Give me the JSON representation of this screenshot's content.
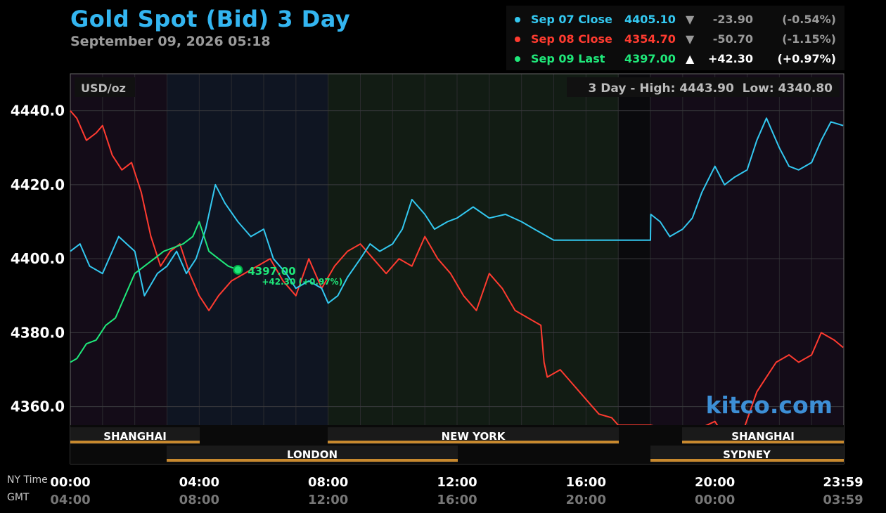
{
  "header": {
    "title": "Gold Spot (Bid) 3 Day",
    "subtitle": "September 09, 2026 05:18"
  },
  "legend": [
    {
      "name": "Sep 07 Close",
      "value": "4405.10",
      "arrow": "▼",
      "change": "-23.90",
      "percent": "(-0.54%)",
      "color": "#33c8f0",
      "change_color": "#9a9a9a"
    },
    {
      "name": "Sep 08 Close",
      "value": "4354.70",
      "arrow": "▼",
      "change": "-50.70",
      "percent": "(-1.15%)",
      "color": "#ff3b30",
      "change_color": "#9a9a9a"
    },
    {
      "name": "Sep 09 Last",
      "value": "4397.00",
      "arrow": "▲",
      "change": "+42.30",
      "percent": "(+0.97%)",
      "color": "#1fe87a",
      "change_color": "#ffffff"
    }
  ],
  "panel": {
    "unit": "USD/oz",
    "high_low": "3 Day - High: 4443.90  Low: 4340.80"
  },
  "marker": {
    "value": "4397.00",
    "change": "+42.30 (+0.97%)"
  },
  "watermark": "kitco.com",
  "sessions": {
    "shanghai_1": "SHANGHAI",
    "london": "LONDON",
    "new_york": "NEW YORK",
    "shanghai_2": "SHANGHAI",
    "sydney": "SYDNEY"
  },
  "axis": {
    "ny_label": "NY Time",
    "gmt_label": "GMT",
    "ny_ticks": [
      "00:00",
      "04:00",
      "08:00",
      "12:00",
      "16:00",
      "20:00",
      "23:59"
    ],
    "gmt_ticks": [
      "04:00",
      "08:00",
      "12:00",
      "16:00",
      "20:00",
      "00:00",
      "03:59"
    ]
  },
  "chart_data": {
    "type": "line",
    "ylim": [
      4355,
      4450
    ],
    "xlim": [
      0,
      24
    ],
    "y_ticks": [
      "4440.0",
      "4420.0",
      "4400.0",
      "4380.0",
      "4360.0"
    ],
    "y_tick_values": [
      4440,
      4420,
      4400,
      4380,
      4360
    ],
    "series": [
      {
        "name": "Sep 07 Close",
        "color": "#33c8f0",
        "x": [
          0,
          0.3,
          0.6,
          1.0,
          1.5,
          2.0,
          2.3,
          2.7,
          3.0,
          3.3,
          3.6,
          3.9,
          4.2,
          4.5,
          4.8,
          5.2,
          5.6,
          6.0,
          6.3,
          6.7,
          7.0,
          7.4,
          7.8,
          8.0,
          8.3,
          8.6,
          9.0,
          9.3,
          9.6,
          10.0,
          10.3,
          10.6,
          11.0,
          11.3,
          11.7,
          12.0,
          12.5,
          13.0,
          13.5,
          14.0,
          14.4,
          15,
          16,
          17,
          18,
          18.01,
          18.3,
          18.6,
          19.0,
          19.3,
          19.6,
          20.0,
          20.3,
          20.6,
          21.0,
          21.3,
          21.6,
          22.0,
          22.3,
          22.6,
          23.0,
          23.3,
          23.6,
          23.98
        ],
        "y": [
          4402,
          4404,
          4398,
          4396,
          4406,
          4402,
          4390,
          4396,
          4398,
          4402,
          4396,
          4400,
          4408,
          4420,
          4415,
          4410,
          4406,
          4408,
          4400,
          4396,
          4392,
          4394,
          4392,
          4388,
          4390,
          4395,
          4400,
          4404,
          4402,
          4404,
          4408,
          4416,
          4412,
          4408,
          4410,
          4411,
          4414,
          4411,
          4412,
          4410,
          4408,
          4405,
          4405,
          4405,
          4405,
          4412,
          4410,
          4406,
          4408,
          4411,
          4418,
          4425,
          4420,
          4422,
          4424,
          4432,
          4438,
          4430,
          4425,
          4424,
          4426,
          4432,
          4437,
          4436
        ]
      },
      {
        "name": "Sep 08 Close",
        "color": "#ff3b30",
        "x": [
          0,
          0.2,
          0.5,
          0.8,
          1.0,
          1.3,
          1.6,
          1.9,
          2.2,
          2.5,
          2.8,
          3.1,
          3.4,
          3.7,
          4.0,
          4.3,
          4.6,
          5.0,
          5.4,
          5.8,
          6.2,
          6.6,
          7.0,
          7.4,
          7.8,
          8.2,
          8.6,
          9.0,
          9.4,
          9.8,
          10.2,
          10.6,
          11.0,
          11.4,
          11.8,
          12.2,
          12.6,
          13.0,
          13.4,
          13.8,
          14.2,
          14.6,
          14.7,
          14.8,
          15.2,
          15.6,
          16.0,
          16.4,
          16.8,
          17.0,
          18.0,
          18.5,
          19.0,
          19.5,
          20.0,
          20.3,
          20.6,
          20.9,
          21.3,
          21.6,
          21.9,
          22.3,
          22.6,
          23.0,
          23.3,
          23.7,
          23.98
        ],
        "y": [
          4440,
          4438,
          4432,
          4434,
          4436,
          4428,
          4424,
          4426,
          4418,
          4406,
          4398,
          4402,
          4404,
          4396,
          4390,
          4386,
          4390,
          4394,
          4396,
          4398,
          4400,
          4394,
          4390,
          4400,
          4392,
          4398,
          4402,
          4404,
          4400,
          4396,
          4400,
          4398,
          4406,
          4400,
          4396,
          4390,
          4386,
          4396,
          4392,
          4386,
          4384,
          4382,
          4372,
          4368,
          4370,
          4366,
          4362,
          4358,
          4357,
          4355,
          4355,
          4354,
          4352,
          4354,
          4356,
          4352,
          4350,
          4354,
          4364,
          4368,
          4372,
          4374,
          4372,
          4374,
          4380,
          4378,
          4376
        ]
      },
      {
        "name": "Sep 09 Last",
        "color": "#1fe87a",
        "x": [
          0,
          0.2,
          0.5,
          0.8,
          1.1,
          1.4,
          1.7,
          2.0,
          2.3,
          2.6,
          2.9,
          3.2,
          3.5,
          3.8,
          4.0,
          4.3,
          4.6,
          4.9,
          5.2
        ],
        "y": [
          4372,
          4373,
          4377,
          4378,
          4382,
          4384,
          4390,
          4396,
          4398,
          4400,
          4402,
          4403,
          4404,
          4406,
          4410,
          4402,
          4400,
          4398,
          4397
        ]
      }
    ],
    "grid": true,
    "legend_position": "top-right"
  }
}
